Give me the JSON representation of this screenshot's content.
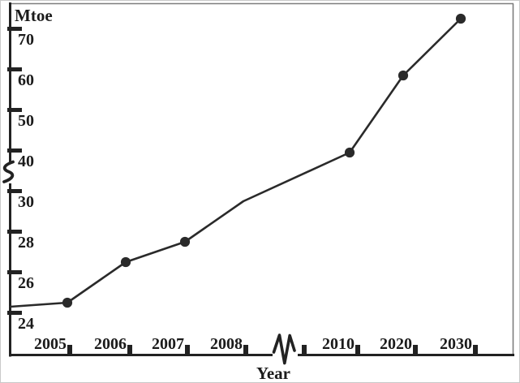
{
  "chart_data": {
    "type": "line",
    "title": "",
    "ylabel": "Mtoe",
    "xlabel": "Year",
    "x_tick_labels": [
      "2005",
      "2006",
      "2007",
      "2008",
      "2010",
      "2020",
      "2030"
    ],
    "y_tick_labels_lower": [
      24,
      26,
      28,
      30
    ],
    "y_tick_labels_upper": [
      40,
      50,
      60,
      70
    ],
    "y_axis_break": {
      "between": [
        30,
        40
      ]
    },
    "x_axis_break": {
      "between": [
        "2008",
        "2010"
      ],
      "unlabeled_tick_after_break": true
    },
    "series": [
      {
        "name": "energy-consumption-mtoe",
        "color": "#2a2a2a",
        "marker": "filled-circle",
        "line_start_value_at_axis": 24.8,
        "points": [
          {
            "year": "2005",
            "value": 25,
            "marker": true
          },
          {
            "year": "2006",
            "value": 27,
            "marker": true
          },
          {
            "year": "2007",
            "value": 28,
            "marker": true
          },
          {
            "year": "2008",
            "value": 30,
            "marker": false
          },
          {
            "year": "2010",
            "value": 42,
            "marker": true
          },
          {
            "year": "2020",
            "value": 61,
            "marker": true
          },
          {
            "year": "2030",
            "value": 75,
            "marker": true
          }
        ]
      }
    ],
    "legend": "none",
    "grid": "off",
    "axis_color": "#222222",
    "frame_color": "#7d7d7d",
    "text_color": "#1b1b1b",
    "background_color": "#ffffff"
  }
}
